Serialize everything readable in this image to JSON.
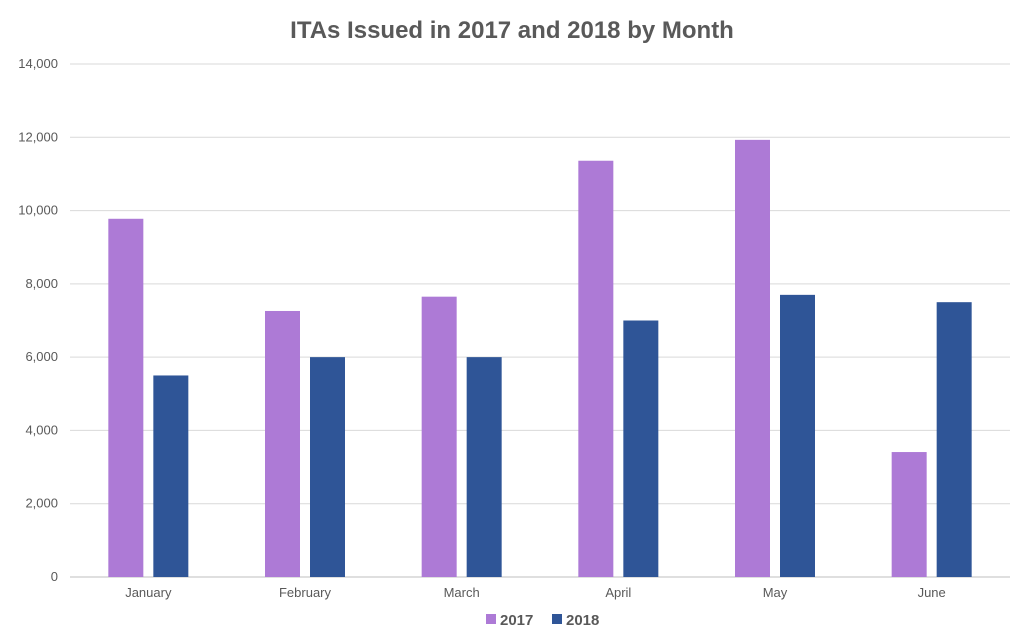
{
  "chart_data": {
    "type": "bar",
    "title": "ITAs Issued in 2017 and 2018 by Month",
    "xlabel": "",
    "ylabel": "",
    "ylim": [
      0,
      14000
    ],
    "yticks": [
      0,
      2000,
      4000,
      6000,
      8000,
      10000,
      12000,
      14000
    ],
    "ytick_labels": [
      "0",
      "2,000",
      "4,000",
      "6,000",
      "8,000",
      "10,000",
      "12,000",
      "14,000"
    ],
    "categories": [
      "January",
      "February",
      "March",
      "April",
      "May",
      "June"
    ],
    "series": [
      {
        "name": "2017",
        "color": "#AD7AD6",
        "values": [
          9776,
          7260,
          7650,
          11360,
          11930,
          3410
        ]
      },
      {
        "name": "2018",
        "color": "#2F5597",
        "values": [
          5500,
          6000,
          6000,
          7000,
          7700,
          7500
        ]
      }
    ],
    "grid": true,
    "legend_position": "bottom"
  }
}
